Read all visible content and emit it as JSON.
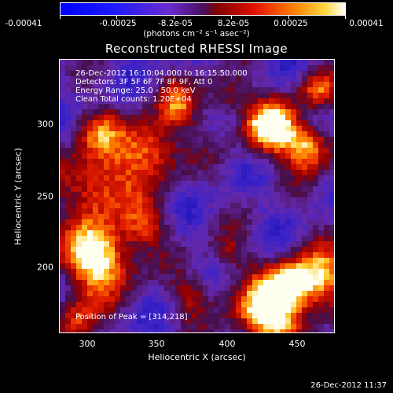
{
  "colorbar": {
    "tick_labels": [
      "-0.00041",
      "-0.00025",
      "-8.2e-05",
      "8.2e-05",
      "0.00025",
      "0.00041"
    ],
    "units": "(photons cm⁻² s⁻¹ asec⁻²)"
  },
  "title": "Reconstructed RHESSI Image",
  "annotations": {
    "time": "26-Dec-2012 16:10:04.000 to 16:15:50.000",
    "detectors": "Detectors: 3F 5F 6F 7F 8F 9F, Att 0",
    "energy": "Energy Range: 25.0 - 50.0 keV",
    "method": "Clean     Total counts: 1.20E+04",
    "peak": "Position of Peak = [314,218]"
  },
  "axes": {
    "xlabel": "Heliocentric X (arcsec)",
    "ylabel": "Heliocentric Y (arcsec)",
    "xticks": [
      "300",
      "350",
      "400",
      "450"
    ],
    "yticks": [
      "300",
      "250",
      "200"
    ],
    "x_values": [
      300,
      350,
      400,
      450
    ],
    "y_values": [
      300,
      250,
      200
    ],
    "xlim": [
      280,
      477
    ],
    "ylim": [
      145,
      336
    ]
  },
  "datestamp": "26-Dec-2012 11:37"
}
